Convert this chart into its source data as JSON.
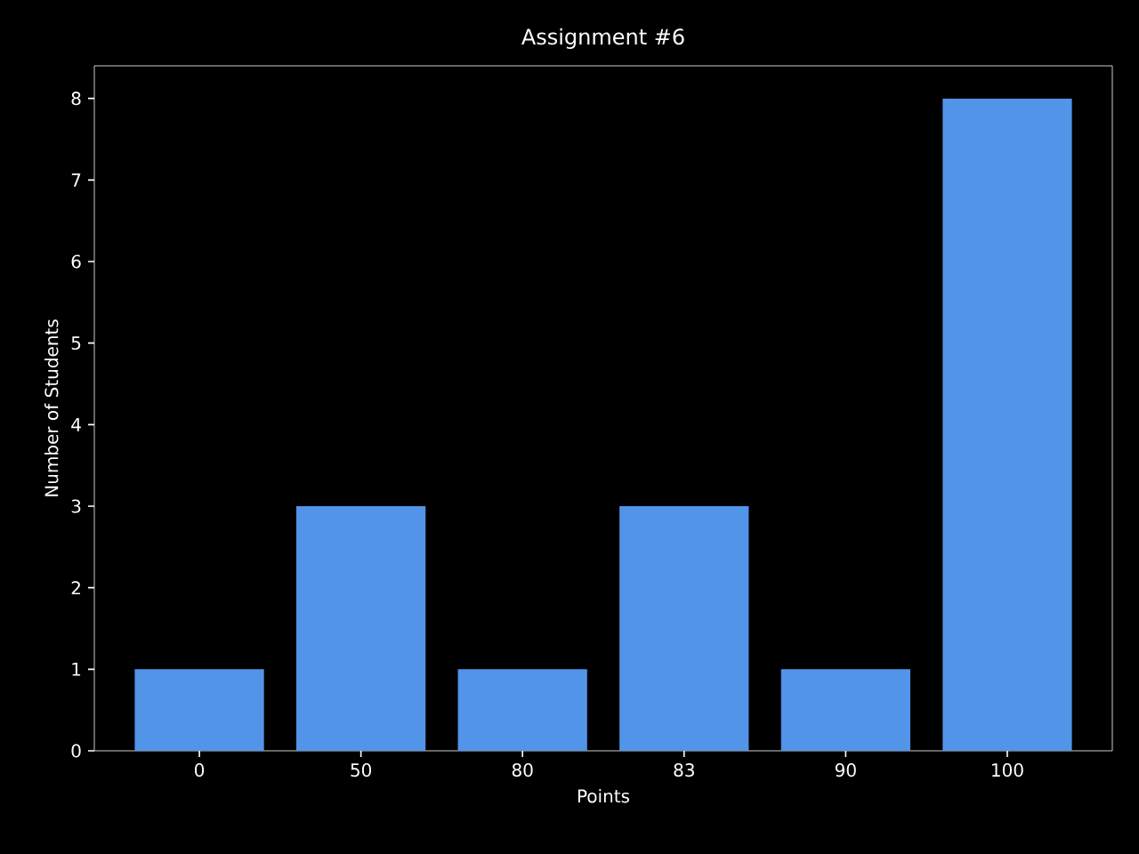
{
  "chart_data": {
    "type": "bar",
    "title": "Assignment #6",
    "xlabel": "Points",
    "ylabel": "Number of Students",
    "categories": [
      "0",
      "50",
      "80",
      "83",
      "90",
      "100"
    ],
    "values": [
      1,
      3,
      1,
      3,
      1,
      8
    ],
    "color": "#5294e8",
    "ylim": [
      0,
      8.4
    ],
    "yticks": [
      0,
      1,
      2,
      3,
      4,
      5,
      6,
      7,
      8
    ]
  }
}
